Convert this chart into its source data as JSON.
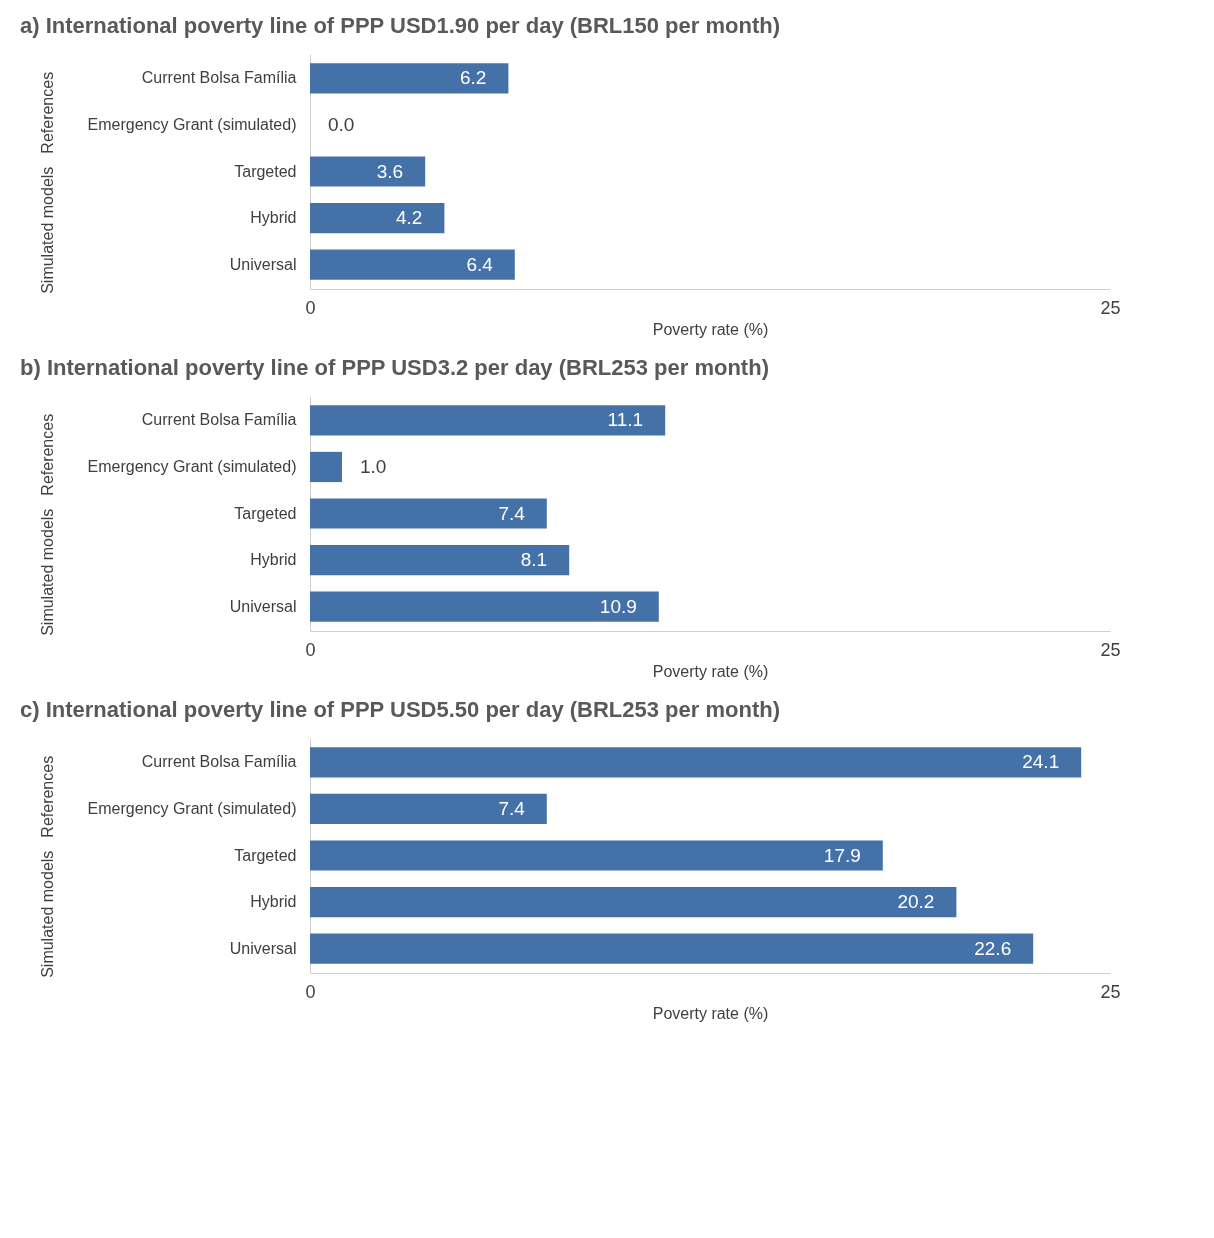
{
  "chart_data": [
    {
      "type": "bar",
      "orientation": "horizontal",
      "title": "a)  International poverty line of PPP USD1.90 per day (BRL150 per month)",
      "xlabel": "Poverty rate (%)",
      "categories": [
        "Current Bolsa Família",
        "Emergency Grant (simulated)",
        "Targeted",
        "Hybrid",
        "Universal"
      ],
      "values": [
        6.2,
        0.0,
        3.6,
        4.2,
        6.4
      ],
      "value_labels": [
        "6.2",
        "0.0",
        "3.6",
        "4.2",
        "6.4"
      ],
      "color": "#4472a8",
      "xlim": [
        0,
        25
      ],
      "xticks": [
        0,
        25
      ],
      "annotations": [
        "References",
        "Simulated models"
      ]
    },
    {
      "type": "bar",
      "orientation": "horizontal",
      "title": "b)  International poverty line of PPP USD3.2 per day (BRL253 per month)",
      "xlabel": "Poverty rate (%)",
      "categories": [
        "Current Bolsa Família",
        "Emergency Grant (simulated)",
        "Targeted",
        "Hybrid",
        "Universal"
      ],
      "values": [
        11.1,
        1.0,
        7.4,
        8.1,
        10.9
      ],
      "value_labels": [
        "11.1",
        "1.0",
        "7.4",
        "8.1",
        "10.9"
      ],
      "color": "#4472a8",
      "xlim": [
        0,
        25
      ],
      "xticks": [
        0,
        25
      ],
      "annotations": [
        "References",
        "Simulated models"
      ]
    },
    {
      "type": "bar",
      "orientation": "horizontal",
      "title": "c)  International poverty line of PPP USD5.50 per day (BRL253 per month)",
      "xlabel": "Poverty rate (%)",
      "categories": [
        "Current Bolsa Família",
        "Emergency Grant (simulated)",
        "Targeted",
        "Hybrid",
        "Universal"
      ],
      "values": [
        24.1,
        7.4,
        17.9,
        20.2,
        22.6
      ],
      "value_labels": [
        "24.1",
        "7.4",
        "17.9",
        "20.2",
        "22.6"
      ],
      "color": "#4472a8",
      "xlim": [
        0,
        25
      ],
      "xticks": [
        0,
        25
      ],
      "annotations": [
        "References",
        "Simulated models"
      ]
    }
  ]
}
